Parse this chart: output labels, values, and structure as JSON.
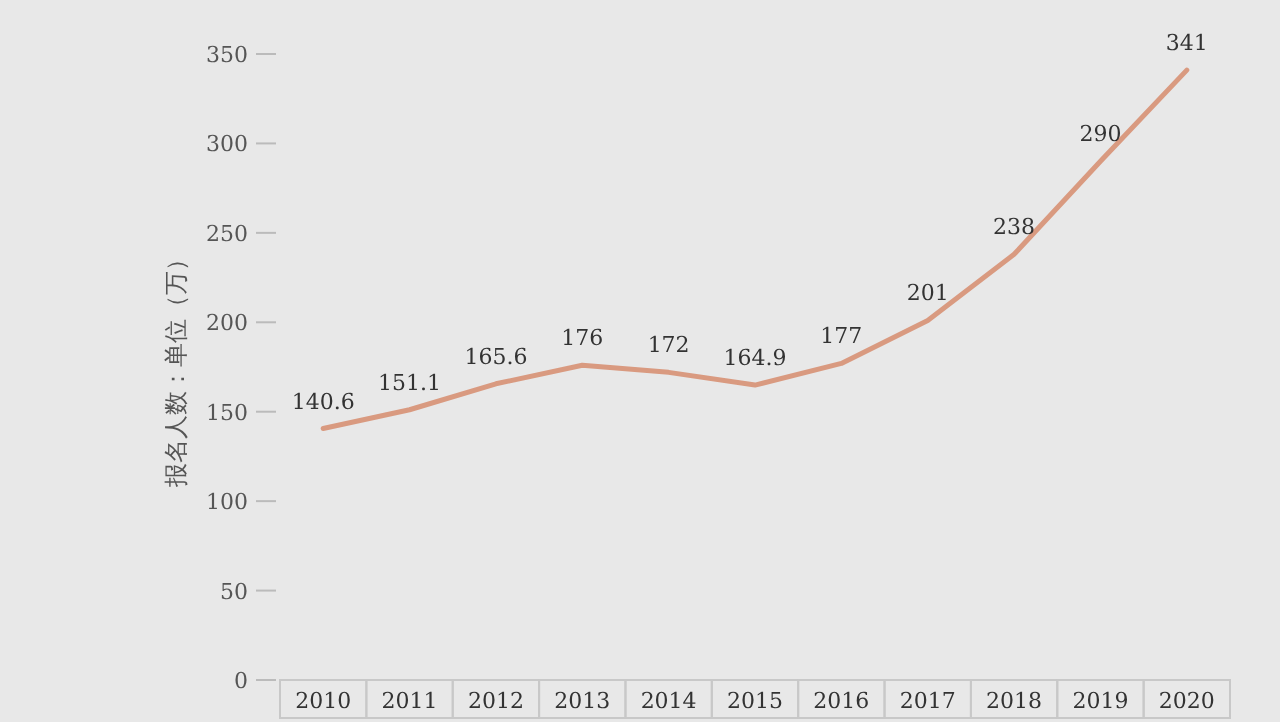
{
  "chart_data": {
    "type": "line",
    "ylabel": "报名人数：单位（万）",
    "categories": [
      "2010",
      "2011",
      "2012",
      "2013",
      "2014",
      "2015",
      "2016",
      "2017",
      "2018",
      "2019",
      "2020"
    ],
    "series": [
      {
        "color": "#d99a80",
        "values": [
          140.6,
          151.1,
          165.6,
          176,
          172,
          164.9,
          177,
          201,
          238,
          290,
          341
        ]
      }
    ],
    "ylim": [
      0,
      350
    ],
    "yticks": [
      0,
      50,
      100,
      150,
      200,
      250,
      300,
      350
    ],
    "data_labels": true,
    "grid": false,
    "marker": "none",
    "line_style": "solid"
  }
}
